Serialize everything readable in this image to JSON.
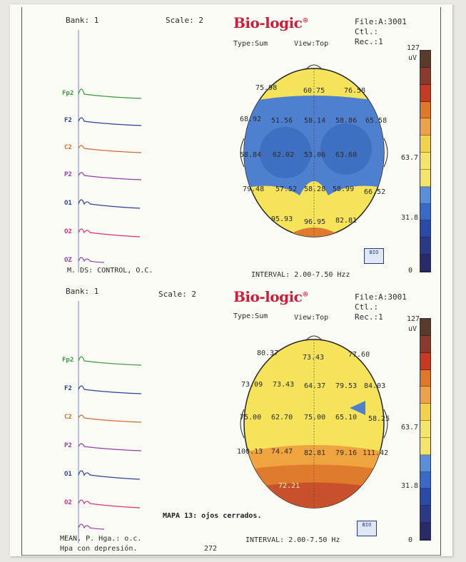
{
  "panels": [
    {
      "bank": "Bank: 1",
      "scale_label": "Scale: 2",
      "logo": "Bio-logic",
      "logo_mark": "®",
      "file": "File:A:3001",
      "ctl": "Ctl.:",
      "rec": "Rec.:1",
      "type": "Type:Sum",
      "view": "View:Top",
      "channels": [
        "Fp2",
        "F2",
        "C2",
        "P2",
        "O1",
        "O2",
        "OZ"
      ],
      "map_values": [
        "75.98",
        "60.75",
        "76.58",
        "68.92",
        "51.56",
        "58.14",
        "58.86",
        "65.58",
        "58.84",
        "62.02",
        "53.06",
        "63.60",
        "79.48",
        "57.52",
        "58.28",
        "58.99",
        "66.52",
        "95.93",
        "96.95",
        "82.81"
      ],
      "scale_top": "127",
      "scale_unit": "uV",
      "scale_mid": "63.7",
      "scale_low": "31.8",
      "scale_zero": "0",
      "footer_left": "M. DS: CONTROL, O.C.",
      "interval": "INTERVAL: 2.00-7.50 Hzz",
      "icon_text": "BIO",
      "colors": {
        "bg": "#f5e35a",
        "low": "#4f7fcf",
        "high": "#e07a2d"
      }
    },
    {
      "bank": "Bank: 1",
      "scale_label": "Scale: 2",
      "logo": "Bio-logic",
      "logo_mark": "®",
      "file": "File:A:3001",
      "ctl": "Ctl.:",
      "rec": "Rec.:1",
      "type": "Type:Sum",
      "view": "View:Top",
      "channels": [
        "Fp2",
        "F2",
        "C2",
        "P2",
        "O1",
        "O2",
        "OZ"
      ],
      "map_values": [
        "80.37",
        "73.43",
        "77.60",
        "73.09",
        "73.43",
        "64.37",
        "79.53",
        "84.03",
        "75.00",
        "62.70",
        "75.00",
        "65.10",
        "58.25",
        "100.13",
        "74.47",
        "82.81",
        "79.16",
        "111.42",
        "72.21"
      ],
      "scale_top": "127",
      "scale_unit": "uV",
      "scale_mid": "63.7",
      "scale_low": "31.8",
      "scale_zero": "0",
      "footer_left": "MEAN. P. Hga.: o.c.",
      "footer_left2": "Hpa con depresión.",
      "page_number": "272",
      "caption": "MAPA 13: ojos cerrados.",
      "interval": "INTERVAL: 2.00-7.50 Hz",
      "icon_text": "BIO",
      "colors": {
        "bg": "#f5e35a",
        "low": "#4f7fcf",
        "high": "#e07a2d"
      }
    }
  ],
  "scale_colors": [
    "#5a3a2a",
    "#8a3a2a",
    "#c43a22",
    "#e0782a",
    "#eba24a",
    "#f2d24a",
    "#f4e46a",
    "#f4e46a",
    "#5a8ed8",
    "#3a6ac8",
    "#2a4aa8",
    "#2a3a88",
    "#2a2a6a"
  ]
}
